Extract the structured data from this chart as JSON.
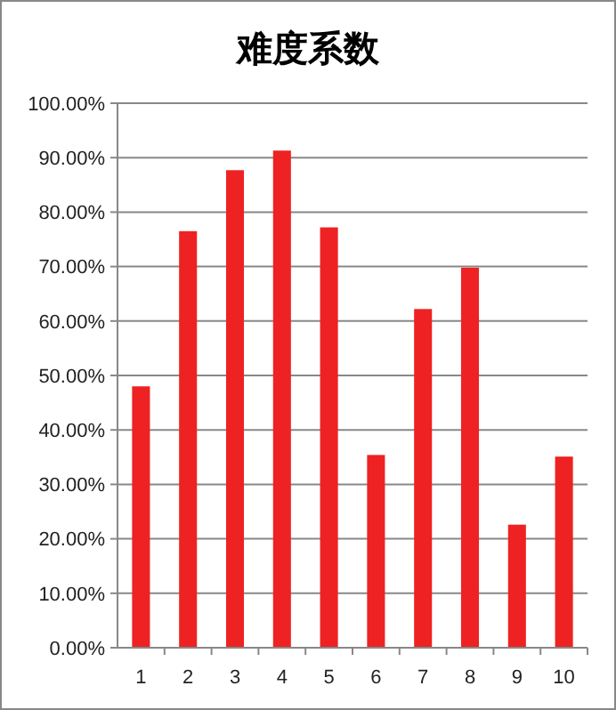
{
  "chart_data": {
    "type": "bar",
    "title": "难度系数",
    "categories": [
      "1",
      "2",
      "3",
      "4",
      "5",
      "6",
      "7",
      "8",
      "9",
      "10"
    ],
    "values": [
      48.0,
      76.5,
      87.7,
      91.3,
      77.2,
      35.4,
      62.2,
      69.8,
      22.6,
      35.1
    ],
    "color": "#ee2222",
    "ylim": [
      0,
      100
    ],
    "yticks": [
      {
        "value": 0,
        "label": "0.00%"
      },
      {
        "value": 10,
        "label": "10.00%"
      },
      {
        "value": 20,
        "label": "20.00%"
      },
      {
        "value": 30,
        "label": "30.00%"
      },
      {
        "value": 40,
        "label": "40.00%"
      },
      {
        "value": 50,
        "label": "50.00%"
      },
      {
        "value": 60,
        "label": "60.00%"
      },
      {
        "value": 70,
        "label": "70.00%"
      },
      {
        "value": 80,
        "label": "80.00%"
      },
      {
        "value": 90,
        "label": "90.00%"
      },
      {
        "value": 100,
        "label": "100.00%"
      }
    ],
    "grid": "y"
  }
}
